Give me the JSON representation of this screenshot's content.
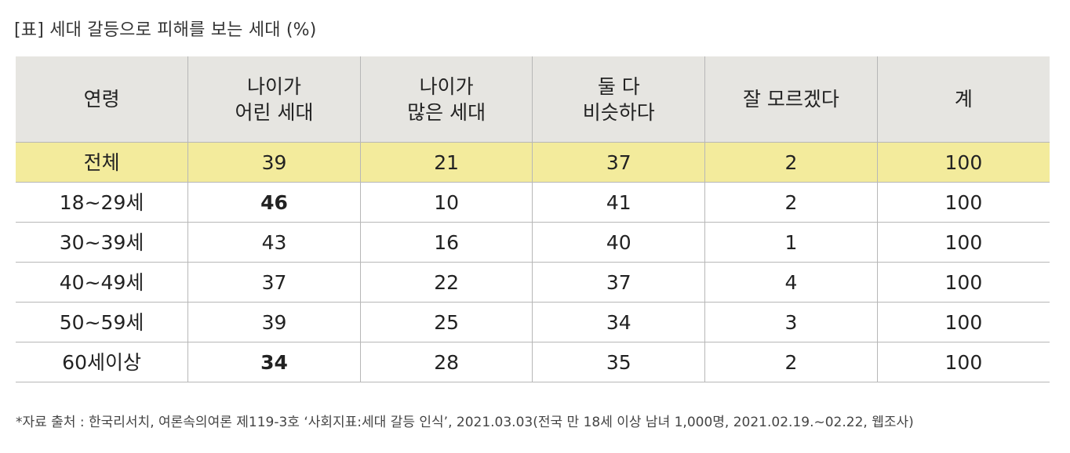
{
  "title": "[표] 세대 갈등으로 피해를 보는 세대 (%)",
  "colors": {
    "header_bg": "#e6e5e1",
    "highlight_bg": "#f3eb9c",
    "emphasis": "#c0431d",
    "border": "#b7b7b7"
  },
  "chart_data": {
    "type": "table",
    "title": "[표] 세대 갈등으로 피해를 보는 세대 (%)",
    "columns": [
      {
        "lines": [
          "연령"
        ]
      },
      {
        "lines": [
          "나이가",
          "어린 세대"
        ]
      },
      {
        "lines": [
          "나이가",
          "많은 세대"
        ]
      },
      {
        "lines": [
          "둘 다",
          "비슷하다"
        ]
      },
      {
        "lines": [
          "잘 모르겠다"
        ]
      },
      {
        "lines": [
          "계"
        ]
      }
    ],
    "rows": [
      {
        "cells": [
          "전체",
          "39",
          "21",
          "37",
          "2",
          "100"
        ],
        "highlight": true,
        "emphasis": []
      },
      {
        "cells": [
          "18~29세",
          "46",
          "10",
          "41",
          "2",
          "100"
        ],
        "highlight": false,
        "emphasis": [
          1
        ]
      },
      {
        "cells": [
          "30~39세",
          "43",
          "16",
          "40",
          "1",
          "100"
        ],
        "highlight": false,
        "emphasis": []
      },
      {
        "cells": [
          "40~49세",
          "37",
          "22",
          "37",
          "4",
          "100"
        ],
        "highlight": false,
        "emphasis": []
      },
      {
        "cells": [
          "50~59세",
          "39",
          "25",
          "34",
          "3",
          "100"
        ],
        "highlight": false,
        "emphasis": []
      },
      {
        "cells": [
          "60세이상",
          "34",
          "28",
          "35",
          "2",
          "100"
        ],
        "highlight": false,
        "emphasis": [
          1
        ]
      }
    ]
  },
  "source": "*자료 출처 : 한국리서치, 여론속의여론 제119-3호 ‘사회지표:세대 갈등 인식’, 2021.03.03(전국 만 18세 이상 남녀 1,000명, 2021.02.19.~02.22, 웹조사)"
}
